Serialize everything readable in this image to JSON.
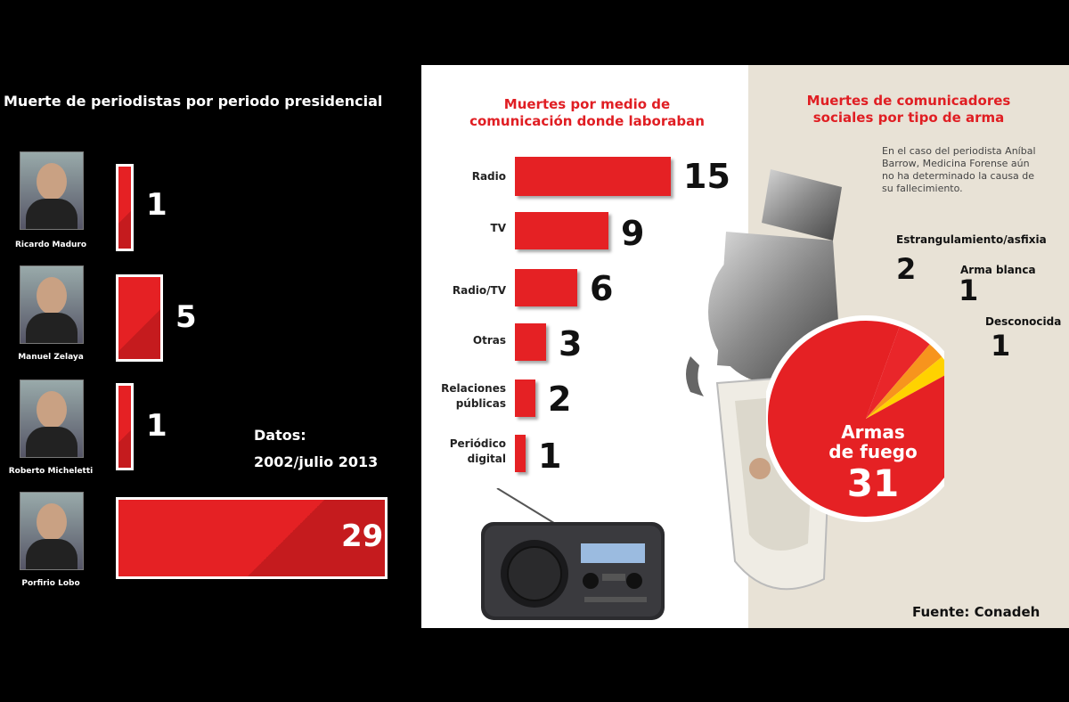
{
  "presidential": {
    "title": "Muerte de periodistas por periodo presidencial",
    "datos": [
      "Datos:",
      "2002/julio 2013"
    ],
    "items": [
      {
        "name": "Ricardo Maduro",
        "value": 1
      },
      {
        "name": "Manuel Zelaya",
        "value": 5
      },
      {
        "name": "Roberto Micheletti",
        "value": 1
      },
      {
        "name": "Porfirio Lobo",
        "value": 29
      }
    ]
  },
  "media": {
    "title_lines": [
      "Muertes por medio de",
      "comunicación donde laboraban"
    ],
    "items": [
      {
        "label_lines": [
          "Radio"
        ],
        "value": 15
      },
      {
        "label_lines": [
          "TV"
        ],
        "value": 9
      },
      {
        "label_lines": [
          "Radio/TV"
        ],
        "value": 6
      },
      {
        "label_lines": [
          "Otras"
        ],
        "value": 3
      },
      {
        "label_lines": [
          "Relaciones",
          "públicas"
        ],
        "value": 2
      },
      {
        "label_lines": [
          "Periódico",
          "digital"
        ],
        "value": 1
      }
    ]
  },
  "weapons": {
    "title_lines": [
      "Muertes de comunicadores",
      "sociales por tipo de arma"
    ],
    "note_lines": [
      "En el caso del periodista Aníbal",
      "Barrow, Medicina Forense aún",
      "no ha determinado la causa de",
      "su fallecimiento."
    ],
    "main_label_lines": [
      "Armas",
      "de fuego"
    ]
  },
  "source": "Fuente: Conadeh",
  "colors": {
    "red": "#e52124",
    "orange": "#f7941d",
    "yellow": "#ffd200",
    "title_red": "#e01e23"
  },
  "chart_data": [
    {
      "type": "bar",
      "title": "Muerte de periodistas por periodo presidencial",
      "categories": [
        "Ricardo Maduro",
        "Manuel Zelaya",
        "Roberto Micheletti",
        "Porfirio Lobo"
      ],
      "values": [
        1,
        5,
        1,
        29
      ],
      "orientation": "horizontal"
    },
    {
      "type": "bar",
      "title": "Muertes por medio de comunicación donde laboraban",
      "categories": [
        "Radio",
        "TV",
        "Radio/TV",
        "Otras",
        "Relaciones públicas",
        "Periódico digital"
      ],
      "values": [
        15,
        9,
        6,
        3,
        2,
        1
      ],
      "orientation": "horizontal"
    },
    {
      "type": "pie",
      "title": "Muertes de comunicadores sociales por tipo de arma",
      "categories": [
        "Armas de fuego",
        "Estrangulamiento/asfixia",
        "Arma blanca",
        "Desconocida"
      ],
      "values": [
        31,
        2,
        1,
        1
      ]
    }
  ]
}
